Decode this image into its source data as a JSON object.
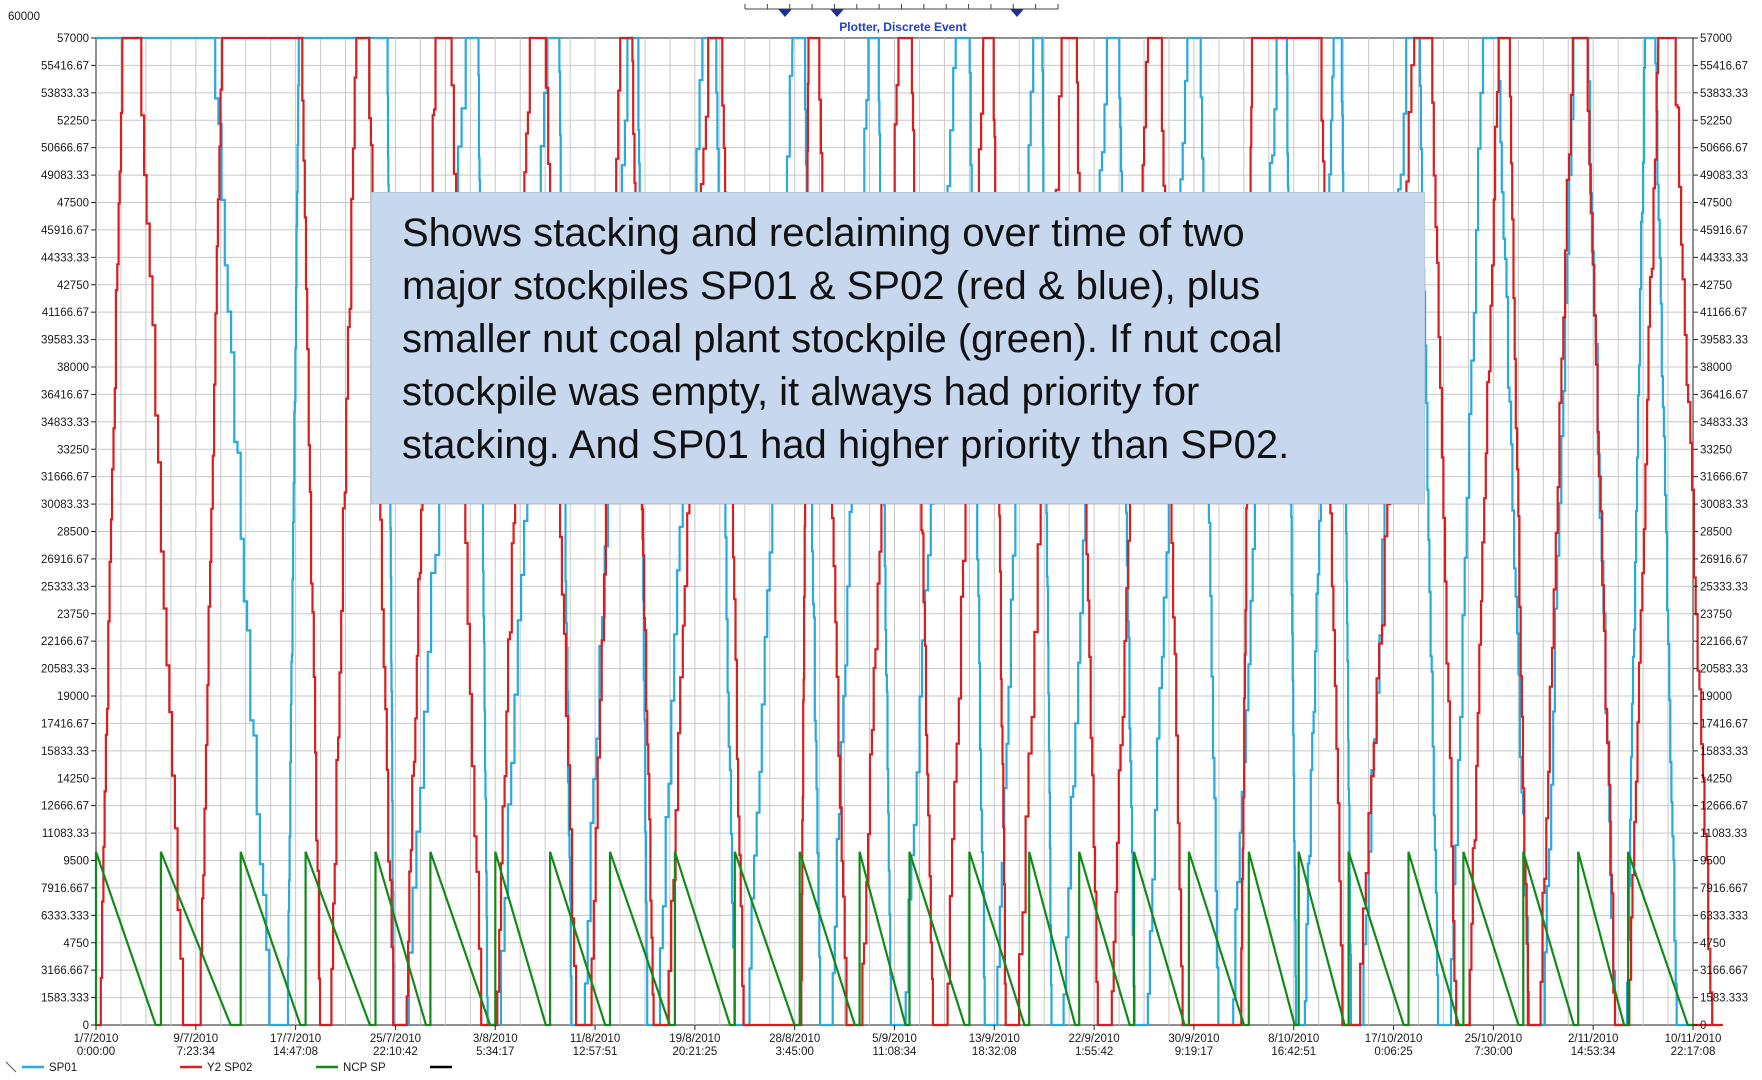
{
  "window": {
    "title": "Plotter, Discrete Event",
    "corner_max_label": "60000"
  },
  "annotation": {
    "lines": [
      "Shows stacking and reclaiming over time of two",
      "major stockpiles SP01 & SP02 (red & blue), plus",
      "smaller nut coal plant stockpile (green). If nut coal",
      "stockpile was empty, it always had priority for",
      "stacking. And SP01 had higher priority than SP02."
    ]
  },
  "chart_data": {
    "type": "line",
    "title": "Plotter, Discrete Event",
    "xlabel": "",
    "ylabel": "",
    "ylim": [
      0,
      57000
    ],
    "step": true,
    "grid": true,
    "legend_position": "bottom-left",
    "y_ticks": [
      "57000",
      "55416.67",
      "53833.33",
      "52250",
      "50666.67",
      "49083.33",
      "47500",
      "45916.67",
      "44333.33",
      "42750",
      "41166.67",
      "39583.33",
      "38000",
      "36416.67",
      "34833.33",
      "33250",
      "31666.67",
      "30083.33",
      "28500",
      "26916.67",
      "25333.33",
      "23750",
      "22166.67",
      "20583.33",
      "19000",
      "17416.67",
      "15833.33",
      "14250",
      "12666.67",
      "11083.33",
      "9500",
      "7916.667",
      "6333.333",
      "4750",
      "3166.667",
      "1583.333",
      "0"
    ],
    "x_ticks": [
      {
        "date": "1/7/2010",
        "time": "0:00:00"
      },
      {
        "date": "9/7/2010",
        "time": "7:23:34"
      },
      {
        "date": "17/7/2010",
        "time": "14:47:08"
      },
      {
        "date": "25/7/2010",
        "time": "22:10:42"
      },
      {
        "date": "3/8/2010",
        "time": "5:34:17"
      },
      {
        "date": "11/8/2010",
        "time": "12:57:51"
      },
      {
        "date": "19/8/2010",
        "time": "20:21:25"
      },
      {
        "date": "28/8/2010",
        "time": "3:45:00"
      },
      {
        "date": "5/9/2010",
        "time": "11:08:34"
      },
      {
        "date": "13/9/2010",
        "time": "18:32:08"
      },
      {
        "date": "22/9/2010",
        "time": "1:55:42"
      },
      {
        "date": "30/9/2010",
        "time": "9:19:17"
      },
      {
        "date": "8/10/2010",
        "time": "16:42:51"
      },
      {
        "date": "17/10/2010",
        "time": "0:06:25"
      },
      {
        "date": "25/10/2010",
        "time": "7:30:00"
      },
      {
        "date": "2/11/2010",
        "time": "14:53:34"
      },
      {
        "date": "10/11/2010",
        "time": "22:17:08"
      }
    ],
    "series": [
      {
        "name": "SP01",
        "color": "#27a9e1",
        "low_index": [
          1.9,
          3.0,
          3.95,
          4.8,
          5.55,
          6.45,
          7.3,
          8.0,
          8.95,
          9.6,
          10.45,
          11.3,
          12.05,
          12.6,
          13.5,
          14.45,
          15.3,
          15.9
        ],
        "high_index": [
          0.15,
          1.0,
          2.05,
          2.9,
          3.8,
          4.6,
          5.4,
          6.15,
          7.05,
          7.8,
          8.7,
          9.45,
          10.2,
          11.0,
          11.9,
          12.45,
          13.2,
          13.95,
          14.85,
          15.55
        ]
      },
      {
        "name": "Y2 SP02",
        "color": "#d81e1e",
        "low_index": [
          1.0,
          2.3,
          3.05,
          3.95,
          4.9,
          5.65,
          6.55,
          7.05,
          7.6,
          8.45,
          9.15,
          10.1,
          10.95,
          11.45,
          12.55,
          13.7,
          14.4,
          15.3,
          16.3
        ],
        "high_index": [
          0.3,
          1.3,
          2.0,
          2.65,
          3.45,
          4.4,
          5.3,
          6.2,
          7.15,
          8.1,
          8.95,
          9.75,
          10.6,
          11.6,
          12.2,
          13.3,
          14.1,
          14.85,
          15.7
        ]
      },
      {
        "name": "NCP SP",
        "color": "#128a1a",
        "peak_value": 10000,
        "refill_index": [
          0.0,
          0.65,
          1.45,
          2.1,
          2.8,
          3.35,
          4.0,
          4.55,
          5.15,
          5.8,
          6.4,
          7.05,
          7.65,
          8.15,
          8.75,
          9.35,
          9.85,
          10.4,
          10.95,
          11.55,
          12.05,
          12.55,
          13.15,
          13.7,
          14.3,
          14.85,
          15.35
        ]
      },
      {
        "name": "",
        "color": "#000000"
      }
    ]
  }
}
